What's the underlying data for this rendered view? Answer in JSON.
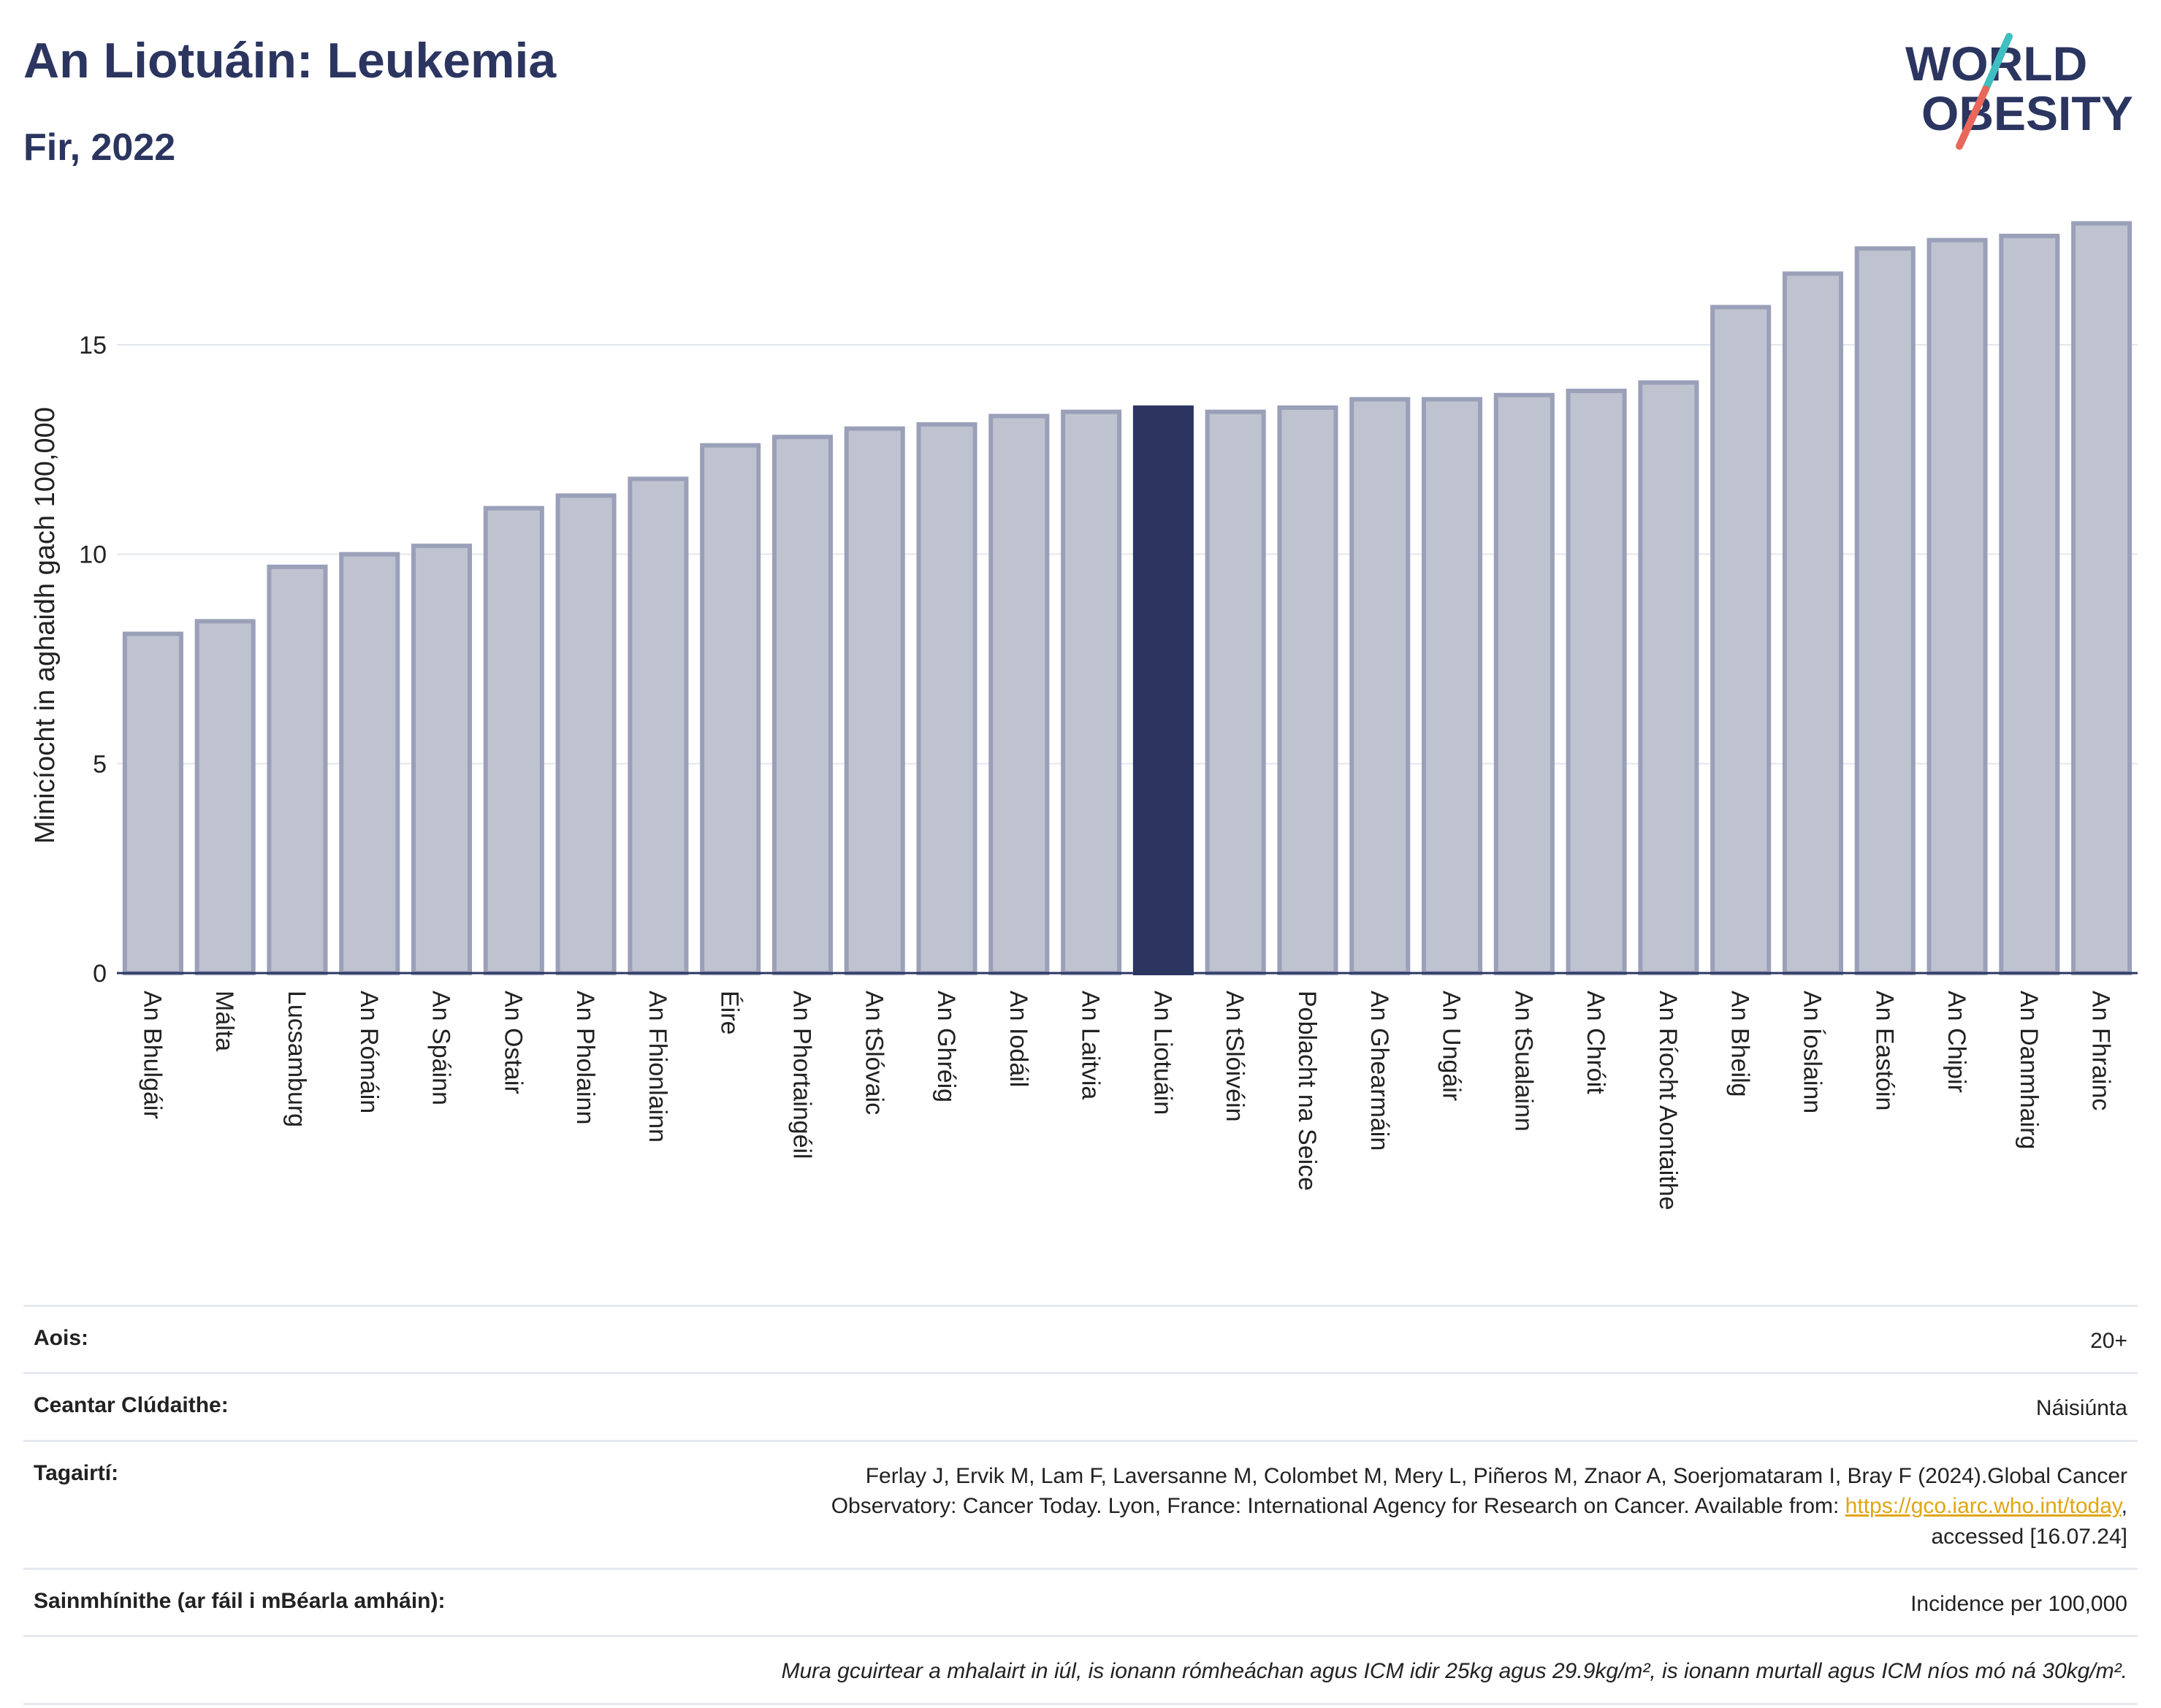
{
  "header": {
    "title": "An Liotuáin: Leukemia",
    "subtitle": "Fir, 2022"
  },
  "logo": {
    "line1": "WORLD",
    "line2": "OBESITY"
  },
  "colors": {
    "bar": "#bfc3d0",
    "bar_stroke": "#9aa0b8",
    "highlight": "#2b3560",
    "text_dark": "#2b3560",
    "logo_teal": "#3fbfbf",
    "logo_coral": "#e8675a",
    "link": "#e0a612"
  },
  "chart_data": {
    "type": "bar",
    "ylabel": "Minicíocht in aghaidh gach 100,000",
    "ylim": [
      0,
      18
    ],
    "yticks": [
      0,
      5,
      10,
      15
    ],
    "grid": true,
    "highlight_category": "An Liotuáin",
    "categories": [
      "An Bhulgáir",
      "Málta",
      "Lucsamburg",
      "An Rómáin",
      "An Spáinn",
      "An Ostair",
      "An Pholainn",
      "An Fhionlainn",
      "Éire",
      "An Phortaingéil",
      "An tSlóvaic",
      "An Ghréig",
      "An Iodáil",
      "An Laitvia",
      "An Liotuáin",
      "An tSlóivéin",
      "Poblacht na Seice",
      "An Ghearmáin",
      "An Ungáir",
      "An tSualainn",
      "An Chróit",
      "An Ríocht Aontaithe",
      "An Bheilg",
      "An Íoslainn",
      "An Eastóin",
      "An Chipir",
      "An Danmhairg",
      "An Fhrainc"
    ],
    "values": [
      8.1,
      8.4,
      9.7,
      10.0,
      10.2,
      11.1,
      11.4,
      11.8,
      12.6,
      12.8,
      13.0,
      13.1,
      13.3,
      13.4,
      13.5,
      13.4,
      13.5,
      13.7,
      13.7,
      13.8,
      13.9,
      14.1,
      15.9,
      16.7,
      17.3,
      17.5,
      17.6,
      17.9
    ]
  },
  "info": {
    "age_label": "Aois:",
    "age_value": "20+",
    "area_label": "Ceantar Clúdaithe:",
    "area_value": "Náisiúnta",
    "ref_label": "Tagairtí:",
    "ref_line1": "Ferlay J, Ervik M, Lam F, Laversanne M, Colombet M, Mery L, Piñeros M, Znaor A, Soerjomataram I, Bray F (2024).Global Cancer",
    "ref_line2_pre": "Observatory: Cancer Today. Lyon, France: International Agency for Research on Cancer. Available from: ",
    "ref_link": "https://gco.iarc.who.int/today",
    "ref_line2_post": ",",
    "ref_line3": "accessed [16.07.24]",
    "def_label": "Sainmhínithe (ar fáil i mBéarla amháin):",
    "def_value": "Incidence per 100,000",
    "note": "Mura gcuirtear a mhalairt in iúl, is ionann rómheáchan agus ICM idir 25kg agus 29.9kg/m², is ionann murtall agus ICM níos mó ná 30kg/m²."
  }
}
